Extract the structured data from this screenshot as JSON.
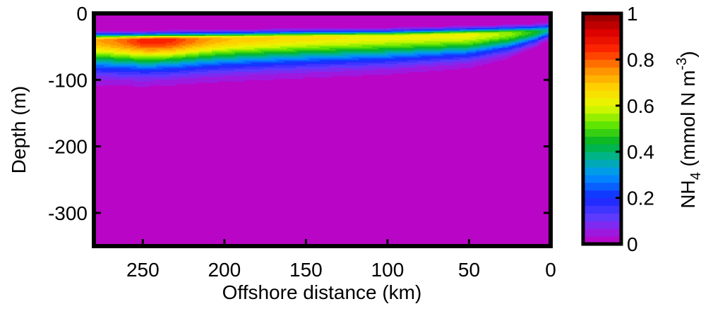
{
  "chart_data": {
    "type": "heatmap",
    "title": "",
    "xlabel": "Offshore distance (km)",
    "ylabel": "Depth (m)",
    "colorbar_label_main": "NH",
    "colorbar_label_sub": "4",
    "colorbar_label_units": " (mmol N m",
    "colorbar_label_exp": "-3",
    "colorbar_label_close": ")",
    "xlim": [
      280,
      0
    ],
    "ylim": [
      -350,
      0
    ],
    "clim": [
      0,
      1
    ],
    "x_ticks": [
      250,
      200,
      150,
      100,
      50,
      0
    ],
    "x_tick_labels": [
      "250",
      "200",
      "150",
      "100",
      "50",
      "0"
    ],
    "y_ticks": [
      0,
      -100,
      -200,
      -300
    ],
    "y_tick_labels": [
      "0",
      "-100",
      "-200",
      "-300"
    ],
    "c_ticks": [
      0,
      0.2,
      0.4,
      0.6,
      0.8,
      1
    ],
    "c_tick_labels": [
      "0",
      "0.2",
      "0.4",
      "0.6",
      "0.8",
      "1"
    ],
    "colormap": "jet-like (magenta → blue → green → yellow → orange → red → dark red)",
    "field_description_values": {
      "x": [
        0,
        10,
        25,
        50,
        100,
        150,
        200,
        250,
        280
      ],
      "max_concentration_depth_m": [
        -25,
        -28,
        -30,
        -32,
        -35,
        -36,
        -38,
        -40,
        -40
      ],
      "peak_concentration": [
        0.35,
        0.45,
        0.55,
        0.62,
        0.62,
        0.65,
        0.7,
        0.75,
        0.72
      ],
      "bottom_of_signal_depth_m": [
        -40,
        -55,
        -70,
        -85,
        -95,
        -100,
        -105,
        -110,
        -110
      ]
    }
  }
}
